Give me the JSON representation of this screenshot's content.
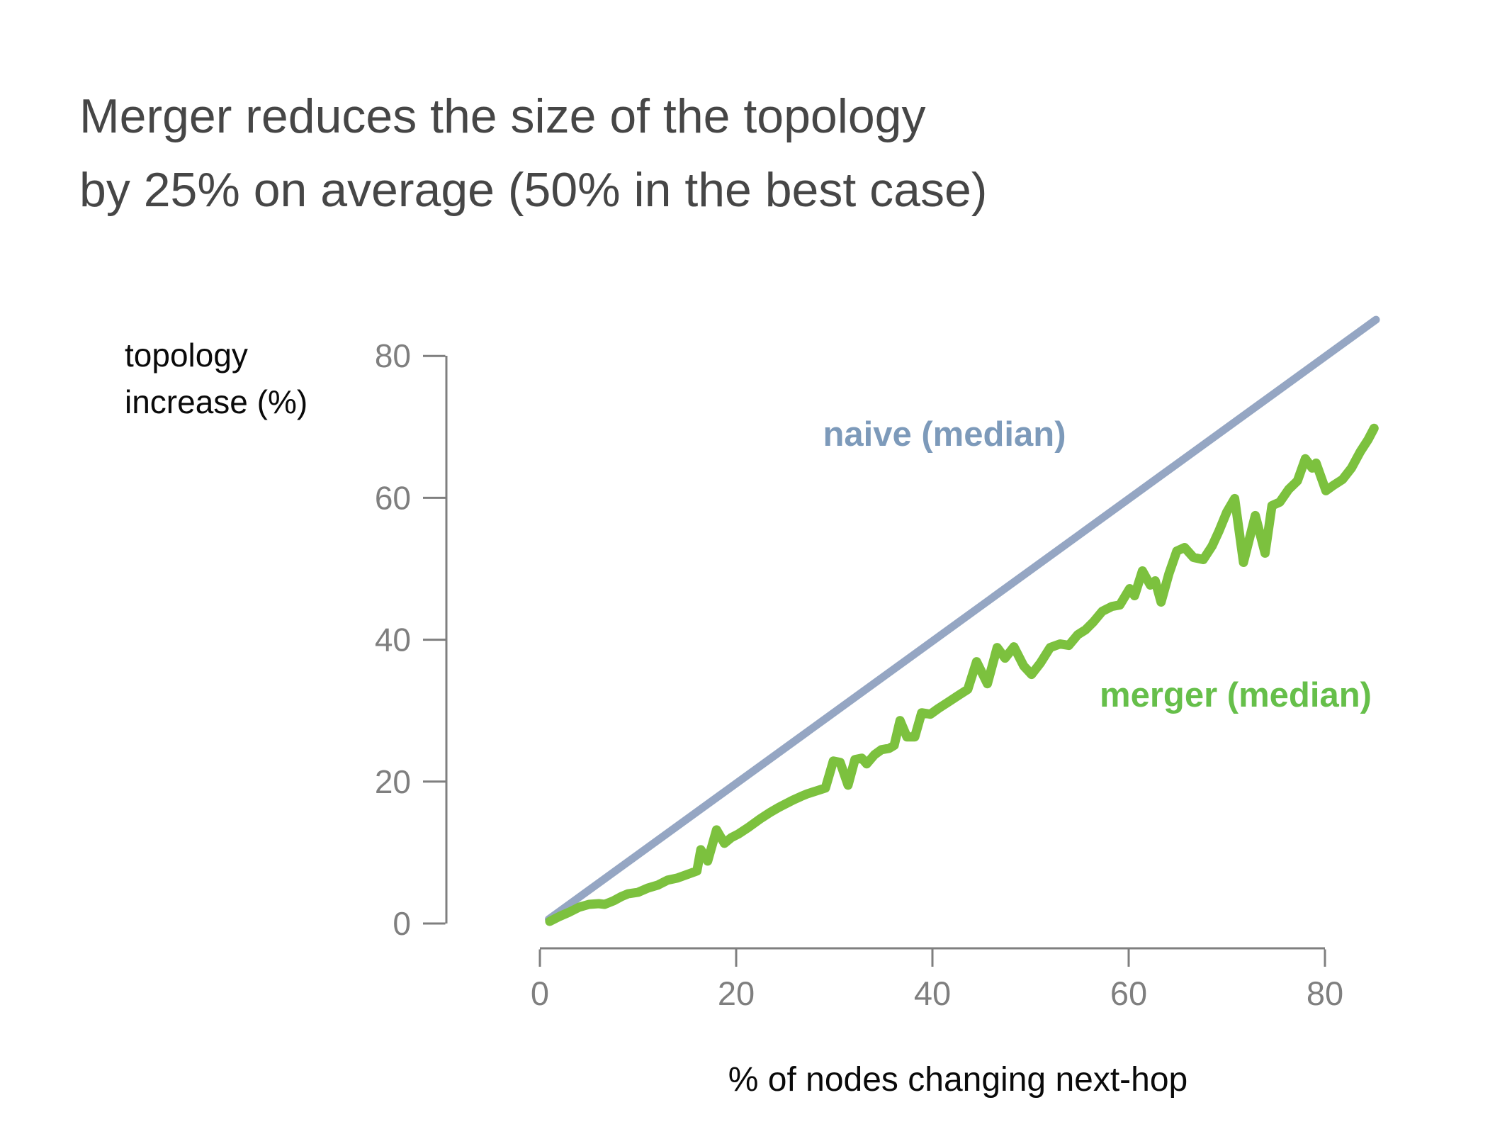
{
  "slide": {
    "title_line1": "Merger reduces the size of the topology",
    "title_line2": "by 25% on average (50% in the best case)"
  },
  "chart_data": {
    "type": "line",
    "title": "",
    "xlabel": "% of nodes changing next-hop",
    "ylabel_line1": "topology",
    "ylabel_line2": "increase (%)",
    "x_ticks": [
      0,
      20,
      40,
      60,
      80
    ],
    "y_ticks": [
      0,
      20,
      40,
      60,
      80
    ],
    "xlim": [
      0,
      86
    ],
    "ylim": [
      0,
      86
    ],
    "grid": false,
    "axis_color": "#7f7f7f",
    "legend_position": "inline-annotations",
    "series": [
      {
        "id": "naive",
        "name": "naive (median)",
        "line_color": "#95a6c3",
        "label_color": "#7d9aba",
        "x": [
          0.9,
          85.2
        ],
        "y": [
          0.6,
          85.1
        ]
      },
      {
        "id": "merger",
        "name": "merger (median)",
        "line_color": "#7cc13e",
        "label_color": "#66bf4a",
        "x": [
          1.0,
          2.0,
          3.0,
          4.0,
          5.0,
          6.0,
          6.6,
          7.5,
          8.3,
          9.0,
          10.0,
          11.0,
          12.0,
          13.0,
          14.0,
          15.0,
          16.0,
          16.4,
          17.1,
          18.0,
          18.8,
          19.5,
          20.2,
          21.3,
          22.5,
          23.4,
          24.4,
          25.8,
          26.6,
          27.3,
          28.2,
          29.1,
          29.9,
          30.6,
          31.4,
          32.1,
          32.8,
          33.3,
          34.1,
          34.8,
          35.6,
          36.1,
          36.7,
          37.4,
          38.2,
          38.9,
          39.8,
          40.6,
          41.6,
          42.7,
          43.6,
          44.5,
          45.6,
          46.6,
          47.4,
          48.3,
          49.3,
          50.1,
          51.0,
          52.0,
          53.0,
          53.9,
          54.8,
          55.6,
          56.4,
          57.3,
          58.3,
          59.1,
          60.1,
          60.6,
          61.4,
          62.2,
          62.7,
          63.3,
          64.1,
          64.9,
          65.7,
          66.6,
          67.6,
          68.5,
          69.2,
          70.0,
          70.8,
          71.7,
          72.9,
          73.9,
          74.6,
          75.4,
          76.3,
          77.2,
          78.0,
          78.7,
          79.1,
          80.1,
          80.9,
          81.8,
          82.7,
          83.6,
          84.4,
          85.0
        ],
        "y": [
          0.3,
          1.0,
          1.6,
          2.3,
          2.7,
          2.8,
          2.7,
          3.2,
          3.8,
          4.2,
          4.4,
          5.0,
          5.4,
          6.1,
          6.4,
          6.9,
          7.4,
          10.4,
          8.8,
          13.2,
          11.3,
          12.1,
          12.6,
          13.6,
          14.8,
          15.6,
          16.4,
          17.4,
          17.9,
          18.3,
          18.7,
          19.1,
          22.9,
          22.7,
          19.5,
          23.1,
          23.3,
          22.5,
          23.8,
          24.5,
          24.7,
          25.1,
          28.6,
          26.3,
          26.3,
          29.7,
          29.5,
          30.3,
          31.2,
          32.2,
          33.0,
          36.9,
          33.8,
          38.9,
          37.4,
          39.0,
          36.3,
          35.1,
          36.7,
          38.9,
          39.4,
          39.2,
          40.7,
          41.4,
          42.5,
          44.0,
          44.7,
          44.9,
          47.2,
          46.2,
          49.7,
          47.7,
          48.3,
          45.3,
          49.3,
          52.5,
          53.0,
          51.6,
          51.3,
          53.2,
          55.3,
          58.0,
          59.9,
          50.9,
          57.5,
          52.2,
          58.9,
          59.4,
          61.2,
          62.4,
          65.5,
          64.2,
          64.9,
          61.0,
          61.8,
          62.6,
          64.2,
          66.5,
          68.2,
          69.8
        ]
      }
    ]
  }
}
